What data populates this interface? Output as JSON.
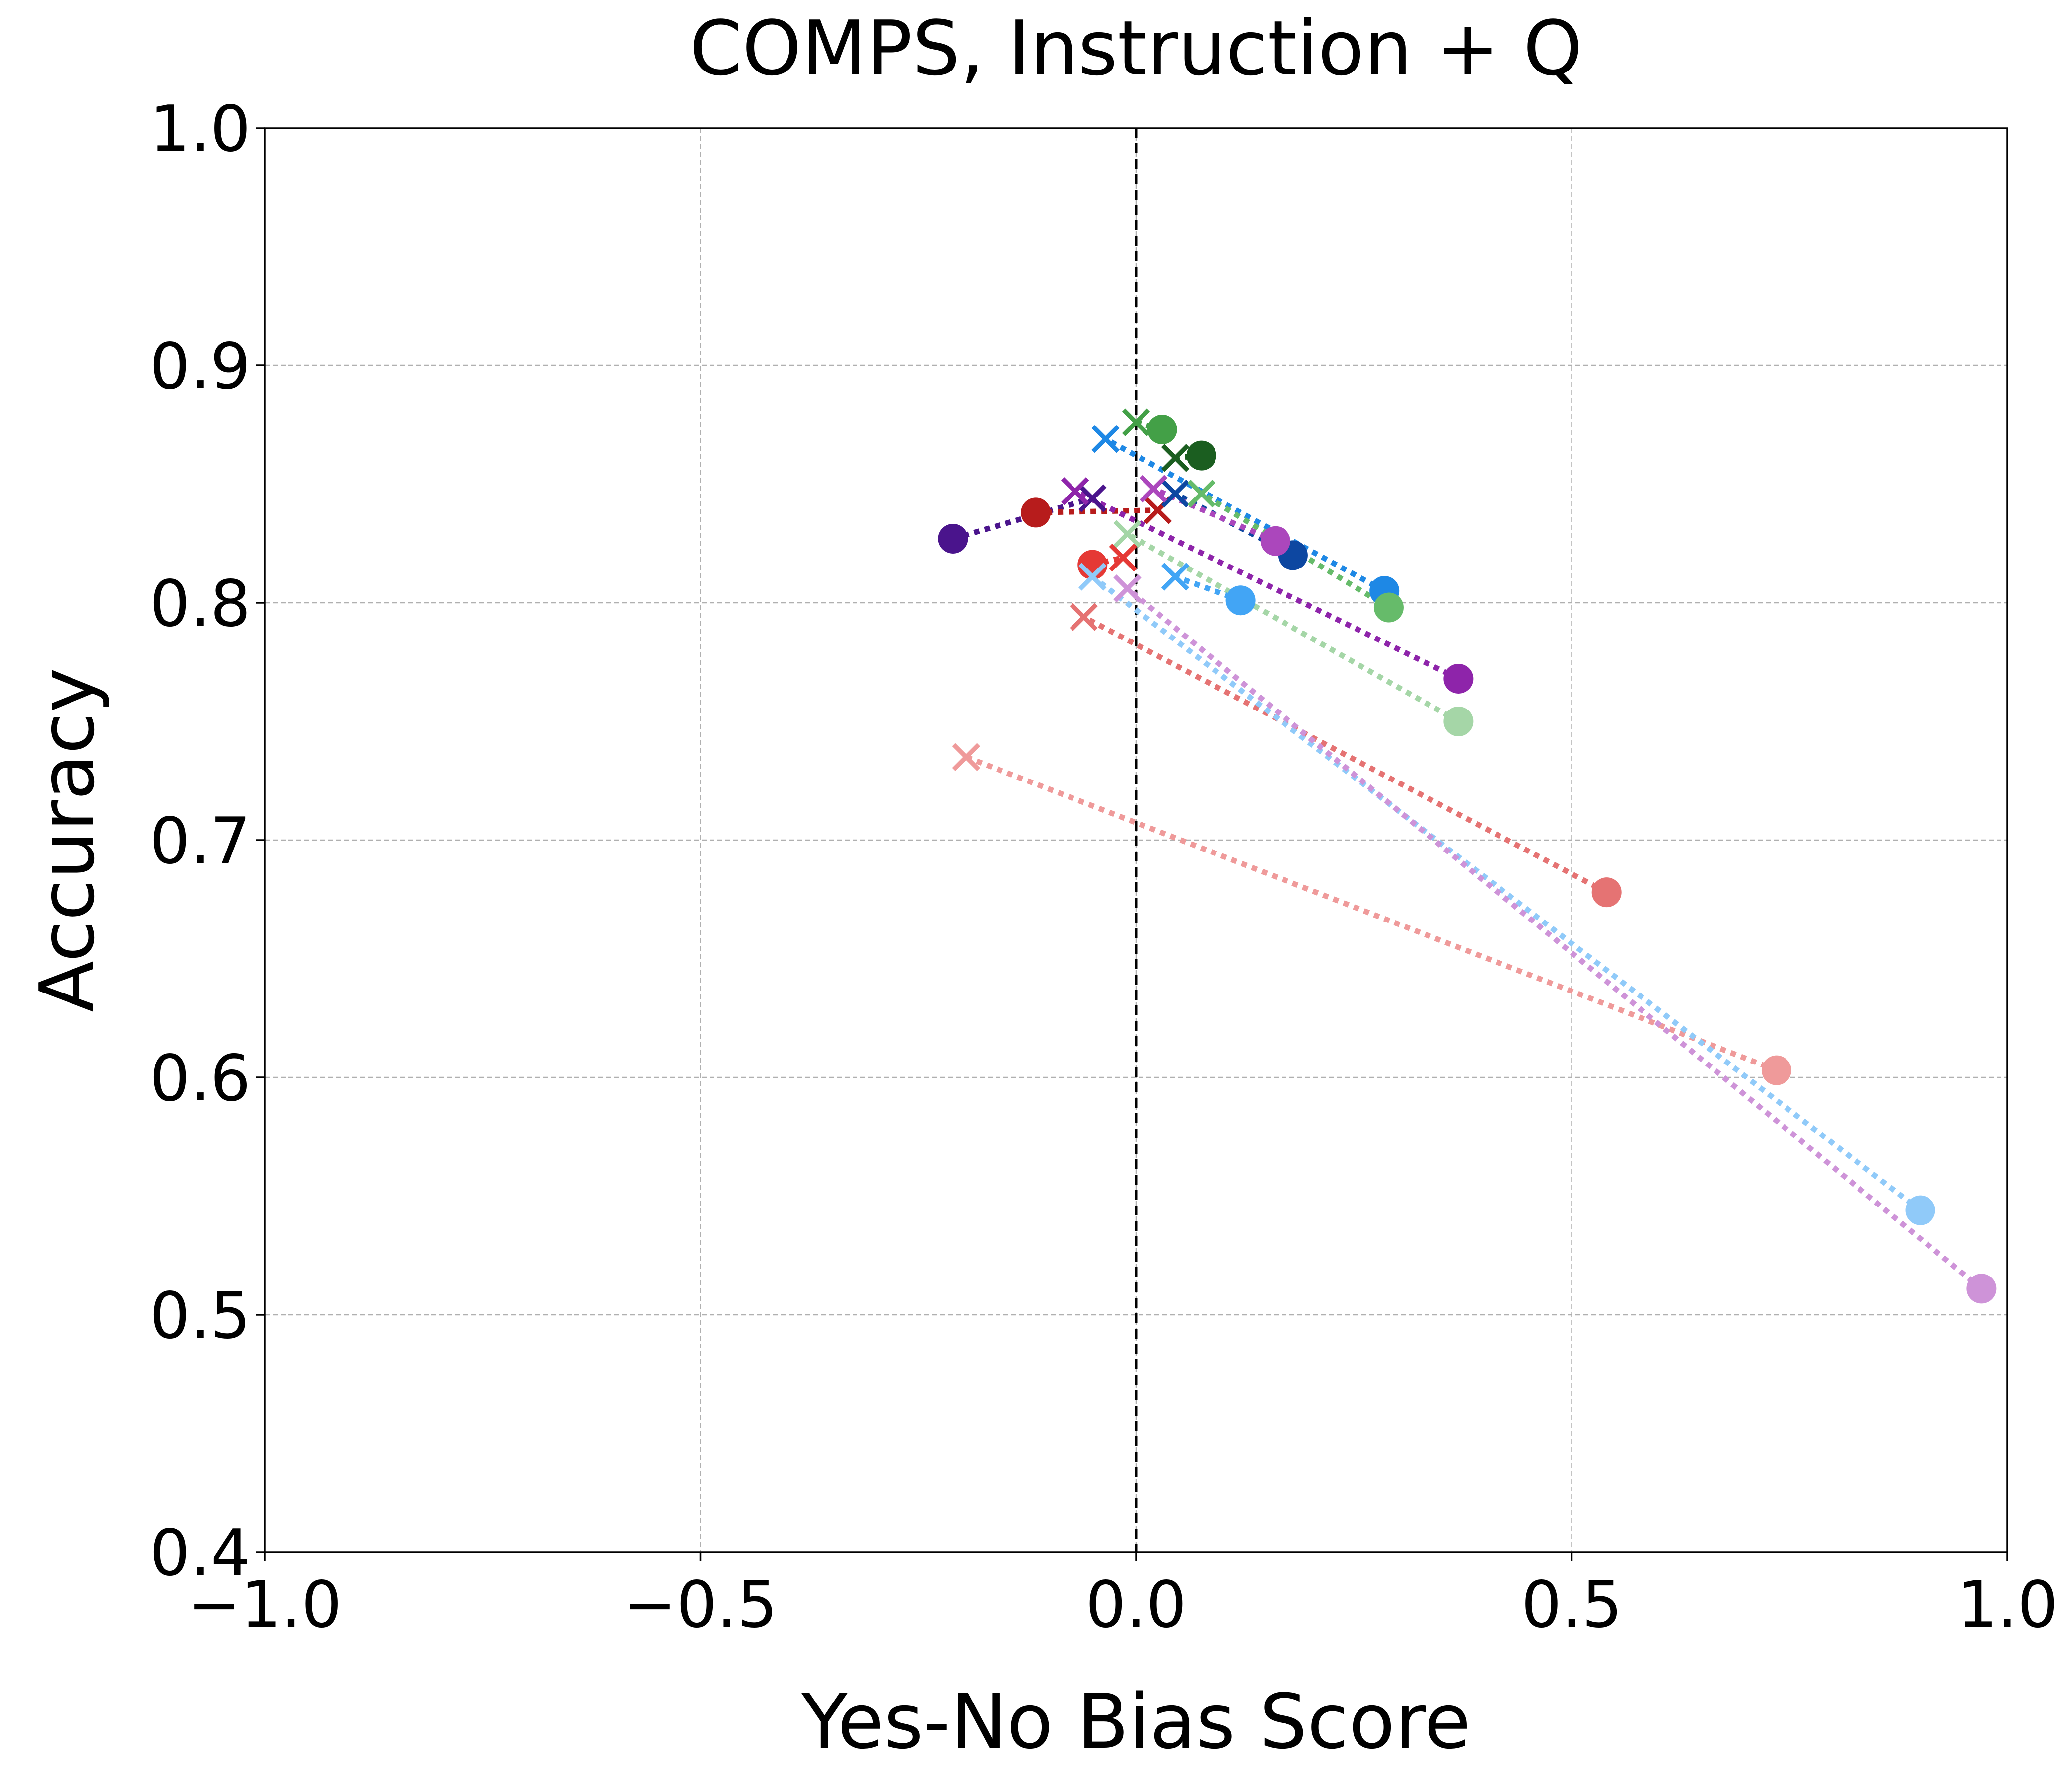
{
  "chart_data": {
    "type": "scatter",
    "title": "COMPS, Instruction + Q",
    "xlabel": "Yes-No Bias Score",
    "ylabel": "Accuracy",
    "xlim": [
      -1.0,
      1.0
    ],
    "ylim": [
      0.4,
      1.0
    ],
    "xticks": [
      -1.0,
      -0.5,
      0.0,
      0.5,
      1.0
    ],
    "xtick_labels": [
      "−1.0",
      "−0.5",
      "0.0",
      "0.5",
      "1.0"
    ],
    "yticks": [
      0.4,
      0.5,
      0.6,
      0.7,
      0.8,
      0.9,
      1.0
    ],
    "ytick_labels": [
      "0.4",
      "0.5",
      "0.6",
      "0.7",
      "0.8",
      "0.9",
      "1.0"
    ],
    "grid": true,
    "reference_line": {
      "x": 0.0,
      "style": "dashed",
      "color": "#000000"
    },
    "markers": {
      "start": "circle",
      "end": "x"
    },
    "series": [
      {
        "color": "#4a148c",
        "start": [
          -0.21,
          0.827
        ],
        "end": [
          -0.05,
          0.844
        ]
      },
      {
        "color": "#b71c1c",
        "start": [
          -0.115,
          0.838
        ],
        "end": [
          0.025,
          0.839
        ]
      },
      {
        "color": "#1b5e20",
        "start": [
          0.075,
          0.862
        ],
        "end": [
          0.045,
          0.861
        ]
      },
      {
        "color": "#43a047",
        "start": [
          0.03,
          0.873
        ],
        "end": [
          0.0,
          0.876
        ]
      },
      {
        "color": "#0d47a1",
        "start": [
          0.18,
          0.82
        ],
        "end": [
          0.045,
          0.846
        ]
      },
      {
        "color": "#1e88e5",
        "start": [
          0.285,
          0.805
        ],
        "end": [
          -0.035,
          0.869
        ]
      },
      {
        "color": "#66bb6a",
        "start": [
          0.29,
          0.798
        ],
        "end": [
          0.075,
          0.846
        ]
      },
      {
        "color": "#8e24aa",
        "start": [
          0.37,
          0.768
        ],
        "end": [
          -0.07,
          0.847
        ]
      },
      {
        "color": "#ab47bc",
        "start": [
          0.16,
          0.826
        ],
        "end": [
          0.02,
          0.848
        ]
      },
      {
        "color": "#a5d6a7",
        "start": [
          0.37,
          0.75
        ],
        "end": [
          -0.01,
          0.829
        ]
      },
      {
        "color": "#42a5f5",
        "start": [
          0.12,
          0.801
        ],
        "end": [
          0.045,
          0.811
        ]
      },
      {
        "color": "#e53935",
        "start": [
          -0.05,
          0.816
        ],
        "end": [
          -0.015,
          0.819
        ]
      },
      {
        "color": "#e57373",
        "start": [
          0.54,
          0.678
        ],
        "end": [
          -0.06,
          0.794
        ]
      },
      {
        "color": "#ef9a9a",
        "start": [
          0.735,
          0.603
        ],
        "end": [
          -0.195,
          0.735
        ]
      },
      {
        "color": "#90caf9",
        "start": [
          0.9,
          0.544
        ],
        "end": [
          -0.05,
          0.811
        ]
      },
      {
        "color": "#ce93d8",
        "start": [
          0.97,
          0.511
        ],
        "end": [
          -0.01,
          0.806
        ]
      }
    ]
  }
}
